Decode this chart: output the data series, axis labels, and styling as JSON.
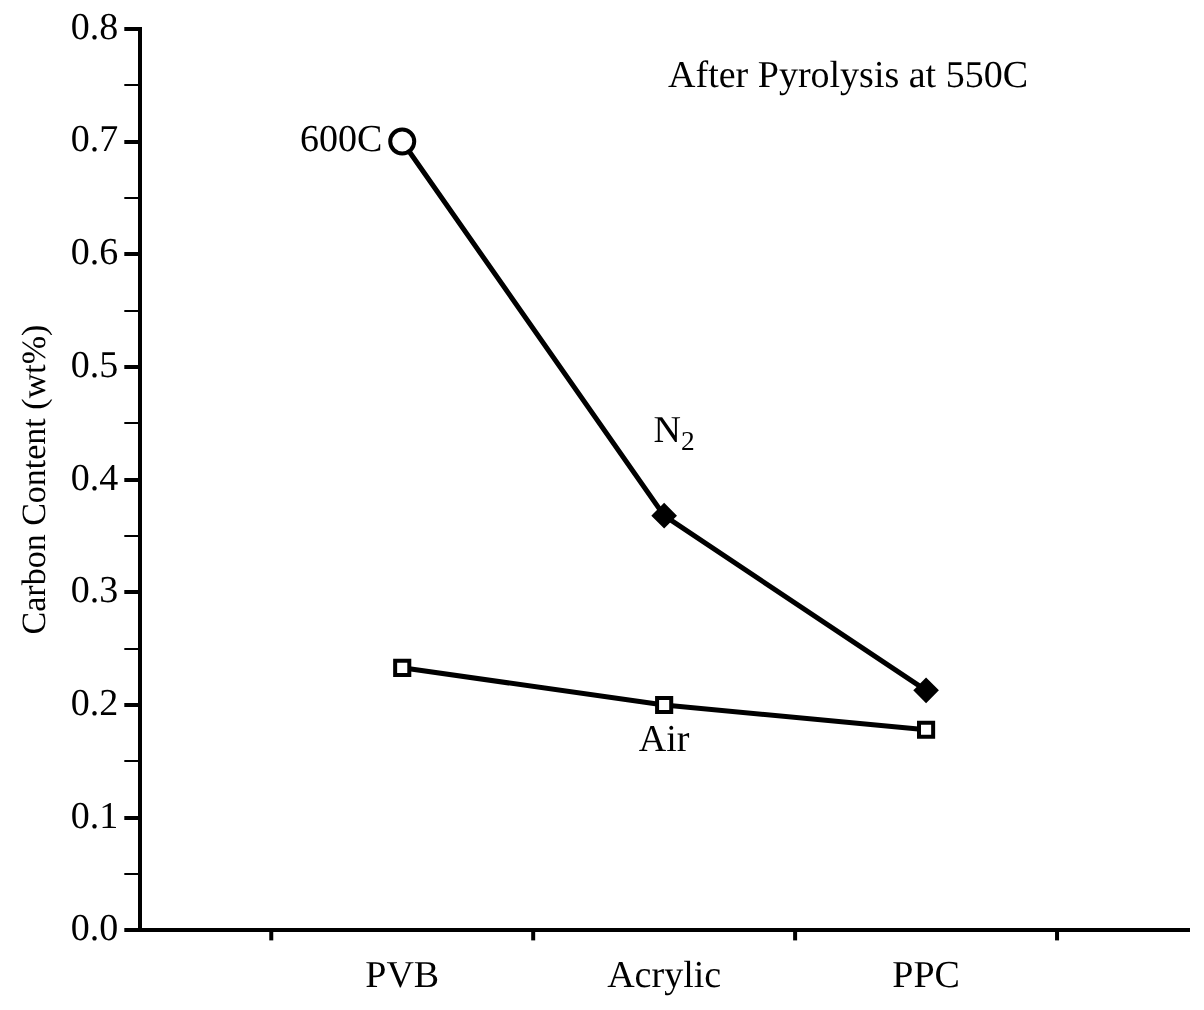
{
  "chart_data": {
    "type": "line",
    "title": "After Pyrolysis at 550C",
    "ylabel": "Carbon Content (wt%)",
    "categories": [
      "PVB",
      "Acrylic",
      "PPC"
    ],
    "series": [
      {
        "name": "N$_{2}$",
        "color": "#000000",
        "marker": "diamond",
        "values": [
          0.7,
          0.368,
          0.213
        ]
      },
      {
        "name": "Air",
        "color": "#000000",
        "marker": "square",
        "values": [
          0.233,
          0.2,
          0.178
        ]
      },
      {
        "name": "600C",
        "type": "scatter",
        "color": "#000000",
        "marker": "circle",
        "x": [
          "PVB"
        ],
        "values": [
          0.7
        ]
      }
    ],
    "ylim": [
      0,
      0.8
    ],
    "yticks": [
      {
        "value": 0,
        "label": "0.0"
      },
      {
        "value": 0.05,
        "label": null
      },
      0.1,
      {
        "value": 0.15,
        "label": null
      },
      0.2,
      {
        "value": 0.25,
        "label": null
      },
      0.3,
      {
        "value": 0.35,
        "label": null
      },
      0.4,
      {
        "value": 0.45,
        "label": null
      },
      0.5,
      {
        "value": 0.55,
        "label": null
      },
      0.6,
      {
        "value": 0.65,
        "label": null
      },
      0.7,
      {
        "value": 0.75,
        "label": null
      },
      0.8
    ],
    "grid": false,
    "legend": false
  }
}
